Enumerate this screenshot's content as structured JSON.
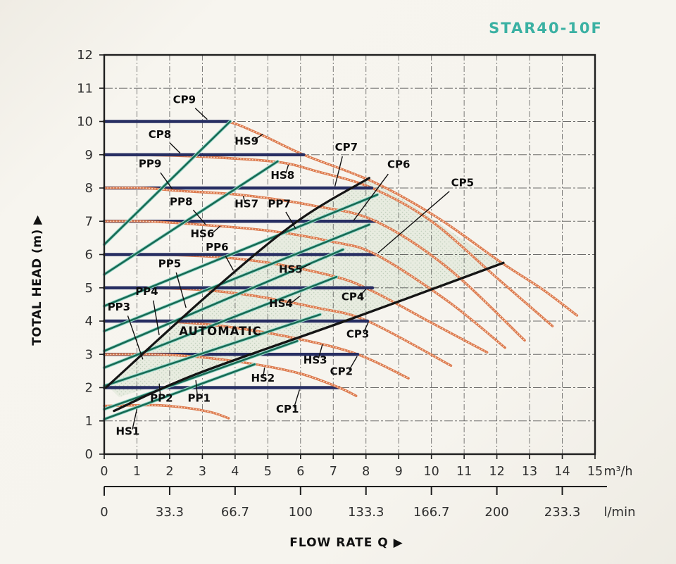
{
  "title": "STAR40-10F",
  "chart_data": {
    "type": "line",
    "title": "STAR40-10F",
    "x_axis": {
      "label": "FLOW RATE Q",
      "arrow": "▶",
      "range": [
        0,
        15
      ],
      "unit_primary": "m³/h",
      "ticks_primary": [
        0,
        1,
        2,
        3,
        4,
        5,
        6,
        7,
        8,
        9,
        10,
        11,
        12,
        13,
        14,
        15
      ],
      "unit_secondary": "l/min",
      "ticks_secondary": [
        {
          "x": 0,
          "label": "0"
        },
        {
          "x": 2,
          "label": "33.3"
        },
        {
          "x": 4,
          "label": "66.7"
        },
        {
          "x": 6,
          "label": "100"
        },
        {
          "x": 8,
          "label": "133.3"
        },
        {
          "x": 10,
          "label": "166.7"
        },
        {
          "x": 12,
          "label": "200"
        },
        {
          "x": 14,
          "label": "233.3"
        }
      ]
    },
    "y_axis": {
      "label": "TOTAL HEAD (m)",
      "arrow": "▶",
      "range": [
        0,
        12
      ],
      "ticks": [
        0,
        1,
        2,
        3,
        4,
        5,
        6,
        7,
        8,
        9,
        10,
        11,
        12
      ]
    },
    "grid": {
      "x_step": 1,
      "y_step": 1,
      "style": "dash-dot"
    },
    "colors": {
      "cp_navy": "#272e62",
      "hs_orange": "#dc7a4e",
      "hs_orange_light": "#fbe0cd",
      "pp_teal": "#176a54",
      "pp_teal_light": "#9adbcd",
      "black_line": "#151515",
      "grid": "#4a4a4a",
      "frame": "#1e1e1e",
      "label": "#0d0d0d",
      "tick_text": "#2f2f2f",
      "title_teal": "#3bb1a3",
      "region_fill": "#dde6d6",
      "region_dot": "#9cb59a"
    },
    "series": {
      "constant_pressure": [
        {
          "name": "CP1",
          "head": 2,
          "x_start": 0,
          "x_end": 7.18
        },
        {
          "name": "CP2",
          "head": 3,
          "x_start": 0,
          "x_end": 7.75
        },
        {
          "name": "CP3",
          "head": 4,
          "x_start": 0,
          "x_end": 8.05
        },
        {
          "name": "CP4",
          "head": 5,
          "x_start": 0,
          "x_end": 8.2
        },
        {
          "name": "CP5",
          "head": 6,
          "x_start": 0,
          "x_end": 8.3
        },
        {
          "name": "CP6",
          "head": 7,
          "x_start": 0,
          "x_end": 8.3
        },
        {
          "name": "CP7",
          "head": 8,
          "x_start": 0,
          "x_end": 8.18
        },
        {
          "name": "CP8",
          "head": 9,
          "x_start": 0,
          "x_end": 6.1
        },
        {
          "name": "CP9",
          "head": 10,
          "x_start": 0,
          "x_end": 3.85
        }
      ],
      "proportional_pressure": [
        {
          "name": "PP1",
          "points": [
            [
              0,
              1.05
            ],
            [
              4.6,
              2.7
            ]
          ]
        },
        {
          "name": "PP2",
          "points": [
            [
              0,
              1.35
            ],
            [
              5.9,
              3.4
            ]
          ]
        },
        {
          "name": "PP3",
          "points": [
            [
              0,
              2.05
            ],
            [
              6.6,
              4.2
            ]
          ]
        },
        {
          "name": "PP4",
          "points": [
            [
              0,
              2.6
            ],
            [
              7.1,
              5.33
            ]
          ]
        },
        {
          "name": "PP5",
          "points": [
            [
              0,
              3.1
            ],
            [
              7.3,
              6.15
            ]
          ]
        },
        {
          "name": "PP6",
          "points": [
            [
              0,
              3.7
            ],
            [
              8.1,
              6.9
            ]
          ]
        },
        {
          "name": "PP7",
          "points": [
            [
              0,
              4.45
            ],
            [
              8.35,
              7.8
            ]
          ]
        },
        {
          "name": "PP8",
          "points": [
            [
              0,
              5.4
            ],
            [
              5.3,
              8.8
            ]
          ]
        },
        {
          "name": "PP9",
          "points": [
            [
              0,
              6.3
            ],
            [
              3.85,
              10
            ]
          ]
        }
      ],
      "speed_curves": [
        {
          "name": "HS1",
          "above_cp": true,
          "points": [
            [
              0,
              1.45
            ],
            [
              1.6,
              1.47
            ],
            [
              2.6,
              1.38
            ],
            [
              3.3,
              1.25
            ],
            [
              3.8,
              1.08
            ]
          ]
        },
        {
          "name": "HS2",
          "above_cp": true,
          "points": [
            [
              0,
              3
            ],
            [
              1.5,
              3
            ],
            [
              2.8,
              2.93
            ],
            [
              4.5,
              2.72
            ],
            [
              6,
              2.42
            ],
            [
              7.18,
              2.0
            ],
            [
              7.7,
              1.75
            ]
          ]
        },
        {
          "name": "HS3",
          "above_cp": false,
          "points": [
            [
              0,
              4
            ],
            [
              2.2,
              3.97
            ],
            [
              4,
              3.8
            ],
            [
              6,
              3.45
            ],
            [
              7.75,
              3.0
            ],
            [
              9.3,
              2.28
            ]
          ]
        },
        {
          "name": "HS4",
          "above_cp": false,
          "points": [
            [
              0,
              5
            ],
            [
              2.4,
              4.97
            ],
            [
              4.3,
              4.8
            ],
            [
              6.5,
              4.4
            ],
            [
              8.05,
              4.0
            ],
            [
              10.6,
              2.66
            ]
          ]
        },
        {
          "name": "HS5",
          "above_cp": false,
          "points": [
            [
              0,
              6
            ],
            [
              2.6,
              5.97
            ],
            [
              4.7,
              5.8
            ],
            [
              7,
              5.35
            ],
            [
              8.2,
              4.9
            ],
            [
              10,
              3.95
            ],
            [
              11.7,
              3.06
            ]
          ]
        },
        {
          "name": "HS6",
          "above_cp": true,
          "points": [
            [
              0,
              7
            ],
            [
              1.2,
              7
            ],
            [
              2.5,
              6.93
            ],
            [
              5,
              6.72
            ],
            [
              7,
              6.38
            ],
            [
              8.3,
              6.0
            ],
            [
              10.5,
              4.6
            ],
            [
              12.25,
              3.2
            ]
          ]
        },
        {
          "name": "HS7",
          "above_cp": true,
          "points": [
            [
              0,
              8
            ],
            [
              1.2,
              8
            ],
            [
              2.2,
              7.92
            ],
            [
              4.3,
              7.78
            ],
            [
              6.5,
              7.45
            ],
            [
              8.3,
              7.0
            ],
            [
              10.5,
              5.6
            ],
            [
              12.85,
              3.42
            ]
          ]
        },
        {
          "name": "HS8",
          "above_cp": false,
          "points": [
            [
              0,
              9
            ],
            [
              1.8,
              8.98
            ],
            [
              3.2,
              8.93
            ],
            [
              5.3,
              8.78
            ],
            [
              6.5,
              8.5
            ],
            [
              8.18,
              8.0
            ],
            [
              10,
              7.0
            ],
            [
              12,
              5.3
            ],
            [
              13.7,
              3.85
            ]
          ]
        },
        {
          "name": "HS9",
          "above_cp": false,
          "points": [
            [
              0,
              10
            ],
            [
              1.5,
              10
            ],
            [
              3,
              10
            ],
            [
              3.85,
              9.97
            ],
            [
              4.8,
              9.6
            ],
            [
              6.1,
              9.0
            ],
            [
              8.3,
              8.15
            ],
            [
              10.2,
              7.1
            ],
            [
              12.15,
              5.75
            ],
            [
              13.4,
              4.95
            ],
            [
              14.45,
              4.17
            ]
          ]
        }
      ],
      "automatic_max": {
        "name": "automatic-max-line",
        "points": [
          [
            0.3,
            1.3
          ],
          [
            2.8,
            2.4
          ],
          [
            7.5,
            4.05
          ],
          [
            12.2,
            5.75
          ]
        ]
      },
      "automatic_upper": {
        "name": "automatic-upper-line",
        "points": [
          [
            0.05,
            2.0
          ],
          [
            3.3,
            4.9
          ],
          [
            5.9,
            7.0
          ],
          [
            8.1,
            8.3
          ]
        ]
      }
    },
    "automatic_region": {
      "label": "AUTOMATIC",
      "label_pos": [
        3.55,
        3.58
      ],
      "polygon": [
        [
          0.1,
          2.05
        ],
        [
          3.3,
          4.9
        ],
        [
          5.9,
          7.0
        ],
        [
          8.1,
          8.28
        ],
        [
          8.35,
          8.1
        ],
        [
          9.5,
          7.45
        ],
        [
          10.8,
          6.55
        ],
        [
          12.15,
          5.73
        ],
        [
          7.5,
          4.05
        ],
        [
          2.8,
          2.4
        ],
        [
          0.45,
          1.72
        ]
      ]
    },
    "curve_labels": [
      {
        "text": "CP9",
        "x": 2.45,
        "y": 10.55,
        "line": [
          [
            2.78,
            10.4
          ],
          [
            3.15,
            10.06
          ]
        ]
      },
      {
        "text": "CP8",
        "x": 1.7,
        "y": 9.5,
        "line": [
          [
            2.0,
            9.36
          ],
          [
            2.32,
            9.05
          ]
        ]
      },
      {
        "text": "PP9",
        "x": 1.4,
        "y": 8.62,
        "line": [
          [
            1.72,
            8.46
          ],
          [
            2.08,
            7.97
          ]
        ]
      },
      {
        "text": "HS9",
        "x": 4.35,
        "y": 9.3,
        "line": [
          [
            4.6,
            9.45
          ],
          [
            4.85,
            9.62
          ]
        ]
      },
      {
        "text": "HS8",
        "x": 5.45,
        "y": 8.28,
        "line": [
          [
            5.55,
            8.44
          ],
          [
            5.63,
            8.7
          ]
        ]
      },
      {
        "text": "PP8",
        "x": 2.35,
        "y": 7.48,
        "line": [
          [
            2.72,
            7.34
          ],
          [
            3.1,
            6.9
          ]
        ]
      },
      {
        "text": "HS7",
        "x": 4.35,
        "y": 7.42,
        "line": [
          [
            4.3,
            7.56
          ],
          [
            4.25,
            7.76
          ]
        ]
      },
      {
        "text": "PP7",
        "x": 5.35,
        "y": 7.42,
        "line": [
          [
            5.55,
            7.28
          ],
          [
            5.85,
            6.78
          ]
        ]
      },
      {
        "text": "CP7",
        "x": 7.4,
        "y": 9.12,
        "line": [
          [
            7.28,
            8.95
          ],
          [
            7.05,
            8.05
          ]
        ]
      },
      {
        "text": "CP6",
        "x": 9.0,
        "y": 8.6,
        "line": [
          [
            8.68,
            8.42
          ],
          [
            7.62,
            7.02
          ]
        ]
      },
      {
        "text": "CP5",
        "x": 10.95,
        "y": 8.05,
        "line": [
          [
            10.55,
            7.9
          ],
          [
            8.37,
            6.05
          ]
        ]
      },
      {
        "text": "HS6",
        "x": 3.0,
        "y": 6.52,
        "line": [
          [
            3.3,
            6.64
          ],
          [
            3.55,
            6.86
          ]
        ]
      },
      {
        "text": "PP6",
        "x": 3.45,
        "y": 6.12,
        "line": [
          [
            3.7,
            5.97
          ],
          [
            3.95,
            5.52
          ]
        ]
      },
      {
        "text": "PP5",
        "x": 2.0,
        "y": 5.62,
        "line": [
          [
            2.2,
            5.46
          ],
          [
            2.5,
            4.4
          ]
        ]
      },
      {
        "text": "HS5",
        "x": 5.7,
        "y": 5.45,
        "line": [
          [
            6.02,
            5.58
          ],
          [
            6.3,
            5.72
          ]
        ]
      },
      {
        "text": "PP4",
        "x": 1.3,
        "y": 4.78,
        "line": [
          [
            1.5,
            4.62
          ],
          [
            1.68,
            3.58
          ]
        ]
      },
      {
        "text": "HS4",
        "x": 5.4,
        "y": 4.42,
        "line": [
          [
            5.72,
            4.55
          ],
          [
            5.98,
            4.75
          ]
        ]
      },
      {
        "text": "CP4",
        "x": 7.6,
        "y": 4.62,
        "line": [
          [
            7.82,
            4.76
          ],
          [
            8.0,
            4.96
          ]
        ]
      },
      {
        "text": "PP3",
        "x": 0.45,
        "y": 4.32,
        "line": [
          [
            0.72,
            4.16
          ],
          [
            1.18,
            2.85
          ]
        ]
      },
      {
        "text": "CP3",
        "x": 7.75,
        "y": 3.5,
        "line": [
          [
            7.92,
            3.64
          ],
          [
            8.07,
            3.96
          ]
        ]
      },
      {
        "text": "HS3",
        "x": 6.45,
        "y": 2.72,
        "line": [
          [
            6.55,
            2.88
          ],
          [
            6.67,
            3.3
          ]
        ]
      },
      {
        "text": "CP2",
        "x": 7.25,
        "y": 2.38,
        "line": [
          [
            7.48,
            2.52
          ],
          [
            7.73,
            2.94
          ]
        ]
      },
      {
        "text": "HS2",
        "x": 4.85,
        "y": 2.18,
        "line": [
          [
            4.86,
            2.33
          ],
          [
            4.9,
            2.6
          ]
        ]
      },
      {
        "text": "CP1",
        "x": 5.6,
        "y": 1.25,
        "line": [
          [
            5.8,
            1.4
          ],
          [
            5.97,
            1.94
          ]
        ]
      },
      {
        "text": "PP2",
        "x": 1.75,
        "y": 1.58,
        "line": [
          [
            1.72,
            1.73
          ],
          [
            1.68,
            2.12
          ]
        ]
      },
      {
        "text": "PP1",
        "x": 2.9,
        "y": 1.58,
        "line": [
          [
            2.85,
            1.73
          ],
          [
            2.8,
            2.22
          ]
        ]
      },
      {
        "text": "HS1",
        "x": 0.72,
        "y": 0.58,
        "line": [
          [
            0.86,
            0.74
          ],
          [
            1.0,
            1.36
          ]
        ]
      }
    ]
  }
}
